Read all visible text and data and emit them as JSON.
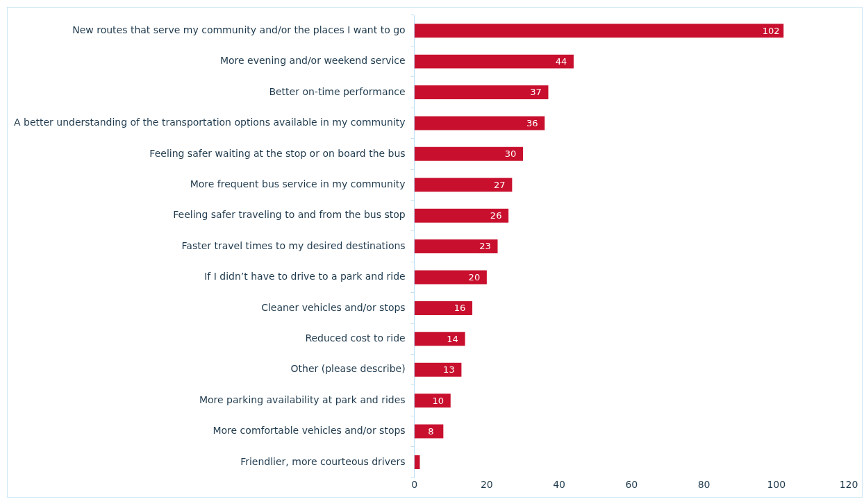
{
  "chart_data": {
    "type": "bar",
    "orientation": "horizontal",
    "categories": [
      "New routes that serve my community and/or the places I want to go",
      "More evening and/or weekend service",
      "Better on-time performance",
      "A better understanding of the transportation options available in my community",
      "Feeling safer waiting at the stop or on board the bus",
      "More frequent bus service in my community",
      "Feeling safer traveling to and from the bus stop",
      "Faster travel times to my desired destinations",
      "If I didn’t have to drive to a park and ride",
      "Cleaner vehicles and/or stops",
      "Reduced cost to ride",
      "Other (please describe)",
      "More parking availability at park and rides",
      "More comfortable vehicles and/or stops",
      "Friendlier, more courteous drivers"
    ],
    "values": [
      102,
      44,
      37,
      36,
      30,
      27,
      26,
      23,
      20,
      16,
      14,
      13,
      10,
      8,
      1.5
    ],
    "value_labels": [
      "102",
      "44",
      "37",
      "36",
      "30",
      "27",
      "26",
      "23",
      "20",
      "16",
      "14",
      "13",
      "10",
      "8",
      null
    ],
    "color": "#c8102e",
    "xlim": [
      0,
      120
    ],
    "xticks": [
      0,
      20,
      40,
      60,
      80,
      100,
      120
    ],
    "grid": false,
    "legend": false
  }
}
